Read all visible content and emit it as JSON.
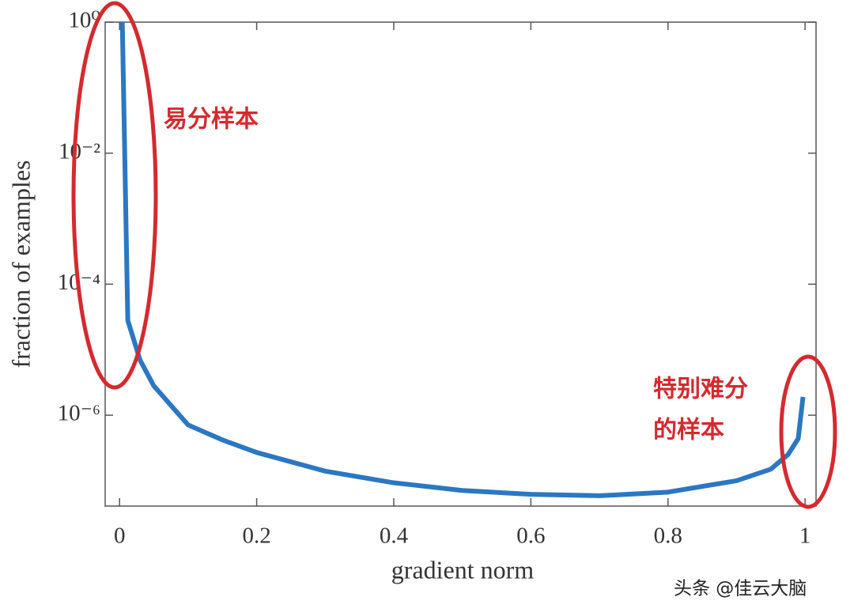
{
  "chart_data": {
    "type": "line",
    "xlabel": "gradient norm",
    "ylabel": "fraction of examples",
    "x": [
      0.004,
      0.012,
      0.03,
      0.05,
      0.1,
      0.15,
      0.2,
      0.3,
      0.4,
      0.5,
      0.6,
      0.7,
      0.8,
      0.9,
      0.95,
      0.975,
      0.99,
      0.997
    ],
    "values": [
      1,
      2.8e-05,
      6.9e-06,
      2.8e-06,
      7.1e-07,
      4.2e-07,
      2.7e-07,
      1.4e-07,
      9.3e-08,
      7.1e-08,
      6.2e-08,
      5.9e-08,
      6.7e-08,
      1e-07,
      1.5e-07,
      2.5e-07,
      4.4e-07,
      1.9e-06
    ],
    "color": "#2b77c2",
    "xlim": [
      -0.021,
      1.016
    ],
    "ylim": [
      4.1e-08,
      1
    ],
    "xticks": [
      0,
      0.2,
      0.4,
      0.6,
      0.8,
      1
    ],
    "yticks": [
      {
        "value": 1,
        "label": "10⁰"
      },
      {
        "value": 0.01,
        "label": "10⁻²"
      },
      {
        "value": 0.0001,
        "label": "10⁻⁴"
      },
      {
        "value": 1e-06,
        "label": "10⁻⁶"
      }
    ],
    "log_y": true,
    "annotations": [
      "易分样本",
      "特别难分",
      "的样本"
    ],
    "watermark": "头条 @佳云大脑"
  }
}
